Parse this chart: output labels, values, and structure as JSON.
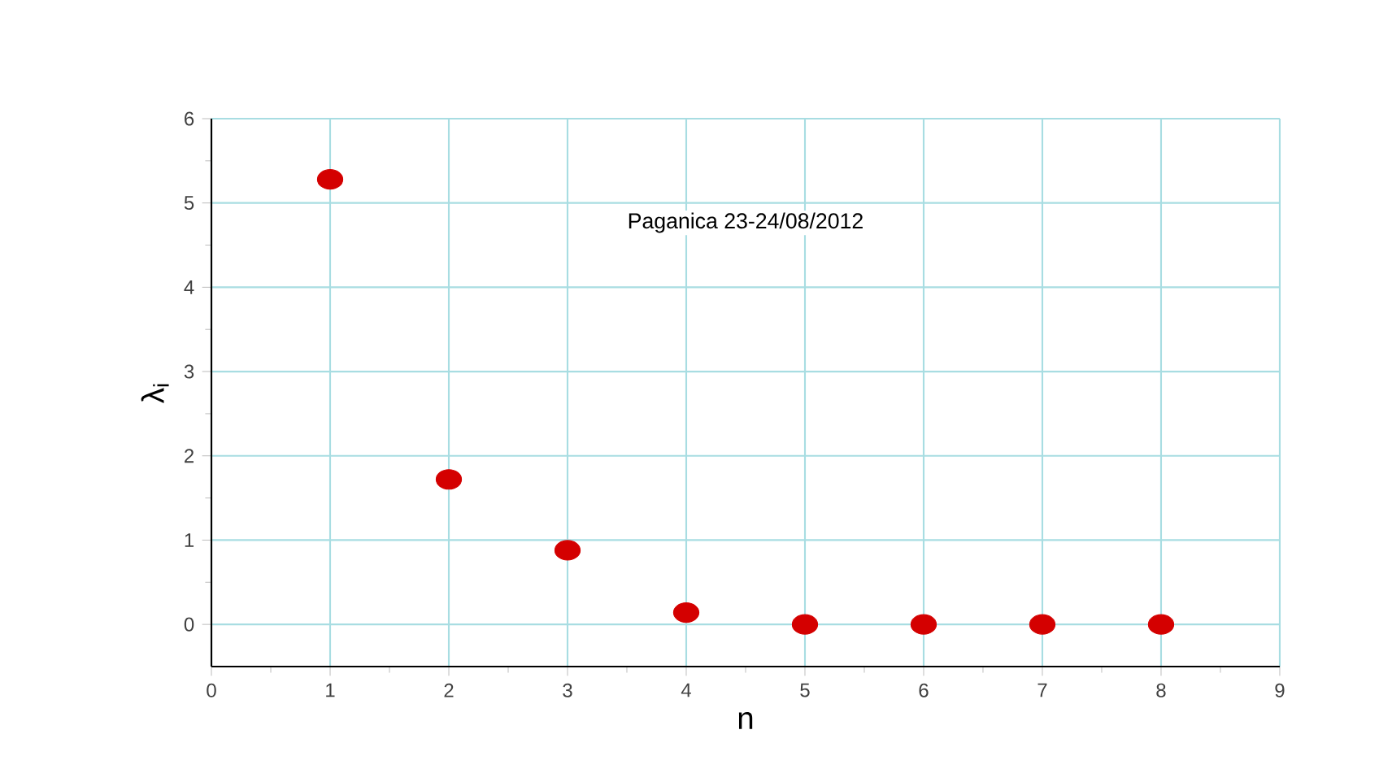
{
  "chart_data": {
    "type": "scatter",
    "xlabel": "n",
    "ylabel": "λ$_{i}$",
    "annotations": [
      "Paganica  23-24/08/2012"
    ],
    "x": [
      1,
      2,
      3,
      4,
      5,
      6,
      7,
      8
    ],
    "values": [
      5.28,
      1.72,
      0.88,
      0.14,
      0,
      0,
      0,
      0
    ],
    "color": "#d40000",
    "marker": "circle",
    "grid": true,
    "xlim": [
      0,
      9
    ],
    "xticks": [
      0,
      1,
      2,
      3,
      4,
      5,
      6,
      7,
      8,
      9
    ],
    "ylim": [
      -0.5,
      6
    ],
    "yticks": [
      0,
      1,
      2,
      3,
      4,
      5,
      6
    ]
  }
}
